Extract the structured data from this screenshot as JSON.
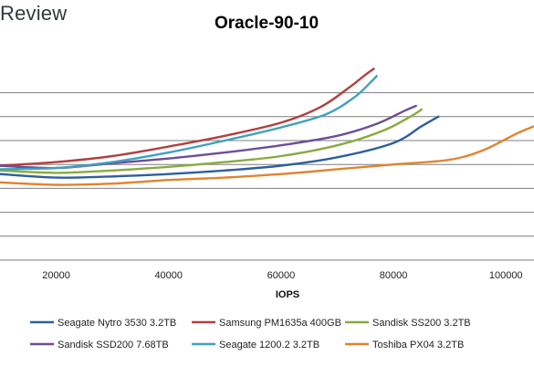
{
  "brand": {
    "text": "Review"
  },
  "chart_data": {
    "type": "line",
    "title": "Oracle-90-10",
    "xlabel": "IOPS",
    "ylabel": "",
    "xlim": [
      10000,
      105000
    ],
    "ylim": [
      0,
      10
    ],
    "xticks": [
      20000,
      40000,
      60000,
      80000,
      100000
    ],
    "yticks": [
      1,
      2,
      3,
      4,
      5,
      6,
      7
    ],
    "grid": true,
    "legend_position": "bottom",
    "series": [
      {
        "name": "Seagate Nytro 3530 3.2TB",
        "color": "#2e5f9e",
        "points": [
          [
            10000,
            3.6
          ],
          [
            20000,
            3.45
          ],
          [
            30000,
            3.5
          ],
          [
            40000,
            3.6
          ],
          [
            50000,
            3.75
          ],
          [
            60000,
            3.95
          ],
          [
            70000,
            4.3
          ],
          [
            80000,
            4.9
          ],
          [
            85000,
            5.6
          ],
          [
            88000,
            6.0
          ]
        ]
      },
      {
        "name": "Samsung PM1635a 400GB",
        "color": "#b2403e",
        "points": [
          [
            10000,
            3.95
          ],
          [
            20000,
            4.1
          ],
          [
            30000,
            4.35
          ],
          [
            40000,
            4.75
          ],
          [
            50000,
            5.2
          ],
          [
            60000,
            5.75
          ],
          [
            67000,
            6.4
          ],
          [
            72000,
            7.2
          ],
          [
            75000,
            7.75
          ],
          [
            76500,
            8.0
          ]
        ]
      },
      {
        "name": "Sandisk SS200 3.2TB",
        "color": "#8aaa3f",
        "points": [
          [
            10000,
            3.75
          ],
          [
            20000,
            3.65
          ],
          [
            30000,
            3.75
          ],
          [
            40000,
            3.9
          ],
          [
            50000,
            4.1
          ],
          [
            60000,
            4.35
          ],
          [
            70000,
            4.8
          ],
          [
            78000,
            5.4
          ],
          [
            83000,
            6.0
          ],
          [
            85000,
            6.3
          ]
        ]
      },
      {
        "name": "Sandisk SSD200 7.68TB",
        "color": "#6b4e96",
        "points": [
          [
            10000,
            3.95
          ],
          [
            20000,
            3.85
          ],
          [
            30000,
            4.05
          ],
          [
            40000,
            4.25
          ],
          [
            50000,
            4.5
          ],
          [
            60000,
            4.8
          ],
          [
            70000,
            5.2
          ],
          [
            77000,
            5.7
          ],
          [
            82000,
            6.25
          ],
          [
            84000,
            6.45
          ]
        ]
      },
      {
        "name": "Seagate 1200.2 3.2TB",
        "color": "#3ea1bf",
        "points": [
          [
            10000,
            3.8
          ],
          [
            20000,
            3.85
          ],
          [
            30000,
            4.1
          ],
          [
            40000,
            4.5
          ],
          [
            50000,
            5.0
          ],
          [
            60000,
            5.55
          ],
          [
            68000,
            6.1
          ],
          [
            73000,
            6.8
          ],
          [
            76000,
            7.45
          ],
          [
            77000,
            7.7
          ]
        ]
      },
      {
        "name": "Toshiba PX04 3.2TB",
        "color": "#e0832e",
        "points": [
          [
            10000,
            3.25
          ],
          [
            20000,
            3.15
          ],
          [
            30000,
            3.2
          ],
          [
            40000,
            3.35
          ],
          [
            50000,
            3.45
          ],
          [
            60000,
            3.6
          ],
          [
            70000,
            3.8
          ],
          [
            80000,
            4.0
          ],
          [
            90000,
            4.2
          ],
          [
            96000,
            4.6
          ],
          [
            102000,
            5.3
          ],
          [
            105000,
            5.6
          ]
        ]
      }
    ]
  }
}
